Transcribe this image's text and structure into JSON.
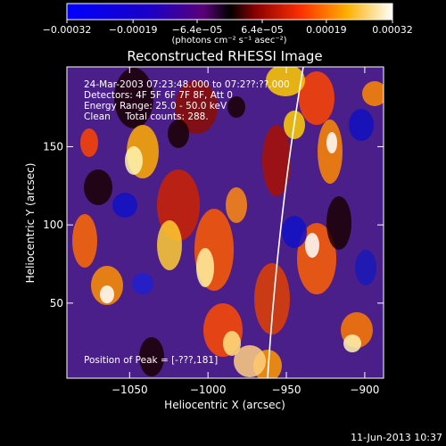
{
  "chart_data": {
    "type": "heatmap",
    "title": "Reconstructed RHESSI Image",
    "xlabel": "Heliocentric X (arcsec)",
    "ylabel": "Heliocentric Y (arcsec)",
    "xlim": [
      -1090,
      -888
    ],
    "ylim": [
      2,
      201
    ],
    "xticks": [
      -1050,
      -1000,
      -950,
      -900
    ],
    "xtick_labels": [
      "−1050",
      "−1000",
      "−950",
      "−900"
    ],
    "yticks": [
      50,
      100,
      150
    ],
    "ytick_labels": [
      "50",
      "100",
      "150"
    ],
    "colorbar": {
      "ticks": [
        -0.00032,
        -0.00019,
        -6.4e-05,
        6.4e-05,
        0.00019,
        0.00032
      ],
      "tick_labels": [
        "−0.00032",
        "−0.00019",
        "−6.4e−05",
        "6.4e−05",
        "0.00019",
        "0.00032"
      ],
      "units": "(photons cm⁻² s⁻¹ asec⁻²)"
    },
    "annotations": [
      "24-Mar-2003 07:23:48.000 to 07:2??:??.000",
      "Detectors: 4F 5F 6F 7F 8F, Att 0",
      "Energy Range: 25.0 - 50.0 keV",
      "Clean     Total counts: 288.",
      "Position of Peak = [-???,181]"
    ],
    "limb_line": "solid white line (solar limb)",
    "footer_date": "11-Jun-2013 10:37",
    "colors": {
      "background": "#000000",
      "text": "#ffffff",
      "limb": "#ffffff"
    }
  }
}
